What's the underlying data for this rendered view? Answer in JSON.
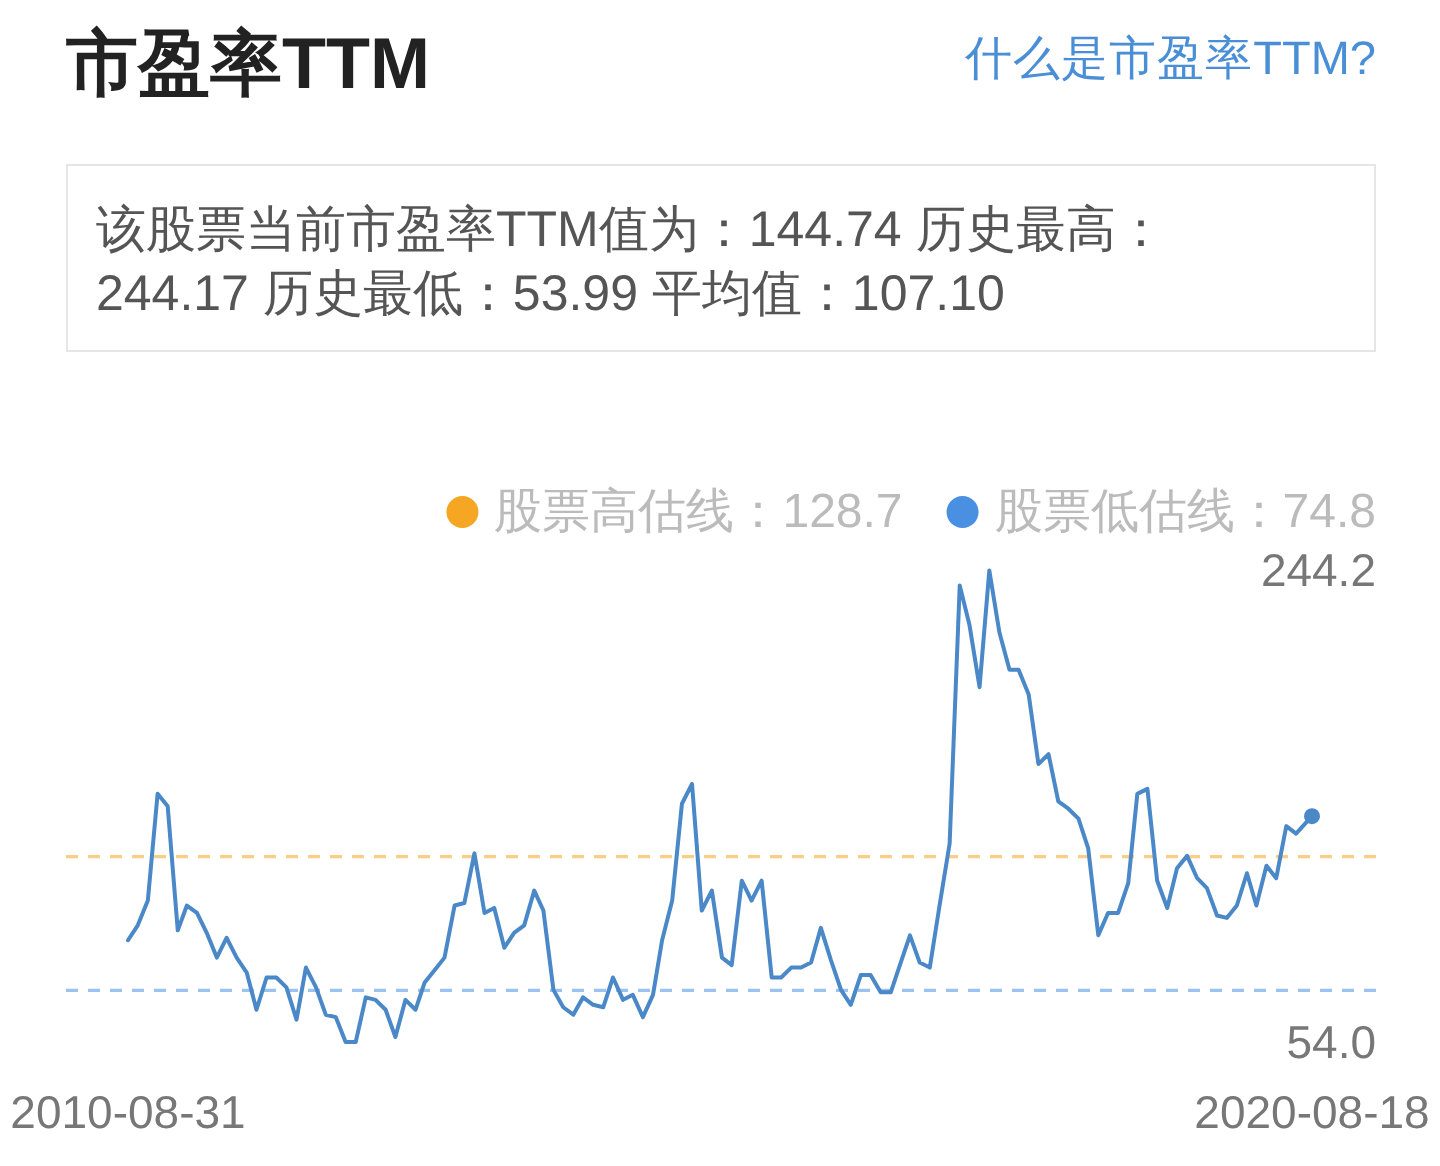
{
  "chart_data": {
    "type": "line",
    "title": "市盈率TTM",
    "annotations": [
      "什么是市盈率TTM?",
      "该股票当前市盈率TTM值为：144.74 历史最高：244.17 历史最低：53.99 平均值：107.10"
    ],
    "x": [
      "2010-08-31",
      "2010-09-30",
      "2010-10-31",
      "2010-11-30",
      "2010-12-31",
      "2011-01-31",
      "2011-02-28",
      "2011-03-31",
      "2011-04-30",
      "2011-05-31",
      "2011-06-30",
      "2011-07-31",
      "2011-08-31",
      "2011-09-30",
      "2011-10-31",
      "2011-11-30",
      "2011-12-31",
      "2012-01-31",
      "2012-02-29",
      "2012-03-31",
      "2012-04-30",
      "2012-05-31",
      "2012-06-30",
      "2012-07-31",
      "2012-08-31",
      "2012-09-30",
      "2012-10-31",
      "2012-11-30",
      "2012-12-31",
      "2013-01-31",
      "2013-02-28",
      "2013-03-31",
      "2013-04-30",
      "2013-05-31",
      "2013-06-30",
      "2013-07-31",
      "2013-08-31",
      "2013-09-30",
      "2013-10-31",
      "2013-11-30",
      "2013-12-31",
      "2014-01-31",
      "2014-02-28",
      "2014-03-31",
      "2014-04-30",
      "2014-05-31",
      "2014-06-30",
      "2014-07-31",
      "2014-08-31",
      "2014-09-30",
      "2014-10-31",
      "2014-11-30",
      "2014-12-31",
      "2015-01-31",
      "2015-02-28",
      "2015-03-31",
      "2015-04-30",
      "2015-05-31",
      "2015-06-30",
      "2015-07-31",
      "2015-08-31",
      "2015-09-30",
      "2015-10-31",
      "2015-11-30",
      "2015-12-31",
      "2016-01-31",
      "2016-02-29",
      "2016-03-31",
      "2016-04-30",
      "2016-05-31",
      "2016-06-30",
      "2016-07-31",
      "2016-08-31",
      "2016-09-30",
      "2016-10-31",
      "2016-11-30",
      "2016-12-31",
      "2017-01-31",
      "2017-02-28",
      "2017-03-31",
      "2017-04-30",
      "2017-05-31",
      "2017-06-30",
      "2017-07-31",
      "2017-08-31",
      "2017-09-30",
      "2017-10-31",
      "2017-11-30",
      "2017-12-31",
      "2018-01-31",
      "2018-02-28",
      "2018-03-31",
      "2018-04-30",
      "2018-05-31",
      "2018-06-30",
      "2018-07-31",
      "2018-08-31",
      "2018-09-30",
      "2018-10-31",
      "2018-11-30",
      "2018-12-31",
      "2019-01-31",
      "2019-02-28",
      "2019-03-31",
      "2019-04-30",
      "2019-05-31",
      "2019-06-30",
      "2019-07-31",
      "2019-08-31",
      "2019-09-30",
      "2019-10-31",
      "2019-11-30",
      "2019-12-31",
      "2020-01-31",
      "2020-02-29",
      "2020-03-31",
      "2020-04-30",
      "2020-05-31",
      "2020-06-30",
      "2020-08-18"
    ],
    "series": [
      {
        "color": "#4a88c8",
        "values": [
          95,
          101,
          111,
          154,
          149,
          99,
          109,
          106,
          98,
          88,
          96,
          88,
          82,
          67,
          80,
          80,
          76,
          63,
          84,
          76,
          65,
          64,
          54,
          54,
          72,
          71,
          67,
          56,
          71,
          67,
          78,
          83,
          88,
          109,
          110,
          130,
          106,
          108,
          92,
          98,
          101,
          115,
          107,
          75,
          68,
          65,
          72,
          69,
          68,
          80,
          71,
          73,
          64,
          73,
          95,
          111,
          150,
          158,
          107,
          115,
          88,
          85,
          119,
          111,
          119,
          80,
          80,
          84,
          84,
          86,
          100,
          87,
          75,
          69,
          81,
          81,
          74,
          74,
          85,
          97,
          86,
          84,
          109,
          134,
          238,
          222,
          197,
          244,
          219,
          204,
          204,
          194,
          166,
          170,
          151,
          148,
          144,
          132,
          97,
          106,
          106,
          118,
          154,
          156,
          119,
          108,
          124,
          129,
          120,
          116,
          105,
          104,
          109,
          122,
          109,
          125,
          120,
          141,
          138,
          145
        ]
      },
      {
        "type": "scatter",
        "color": "#4a88c8",
        "x": [
          "2020-08-18"
        ],
        "values": [
          145
        ]
      }
    ],
    "xlim": [
      "2010-08-31",
      "2020-08-18"
    ],
    "xticks": [
      "2010-08-31",
      "2020-08-18"
    ],
    "ylim": [
      54.0,
      244.2
    ],
    "yticks": [
      {
        "value": 54.0,
        "label": "54.0"
      },
      244.2
    ],
    "ref_lines": [
      {
        "axis": "y",
        "value": 128.7,
        "label": "股票高估线：128.7",
        "color": "#f5a623",
        "line_style": "dashed"
      },
      {
        "axis": "y",
        "value": 74.8,
        "label": "股票低估线：74.8",
        "color": "#4a90e2",
        "line_style": "dashed"
      }
    ],
    "legend": "top right"
  }
}
